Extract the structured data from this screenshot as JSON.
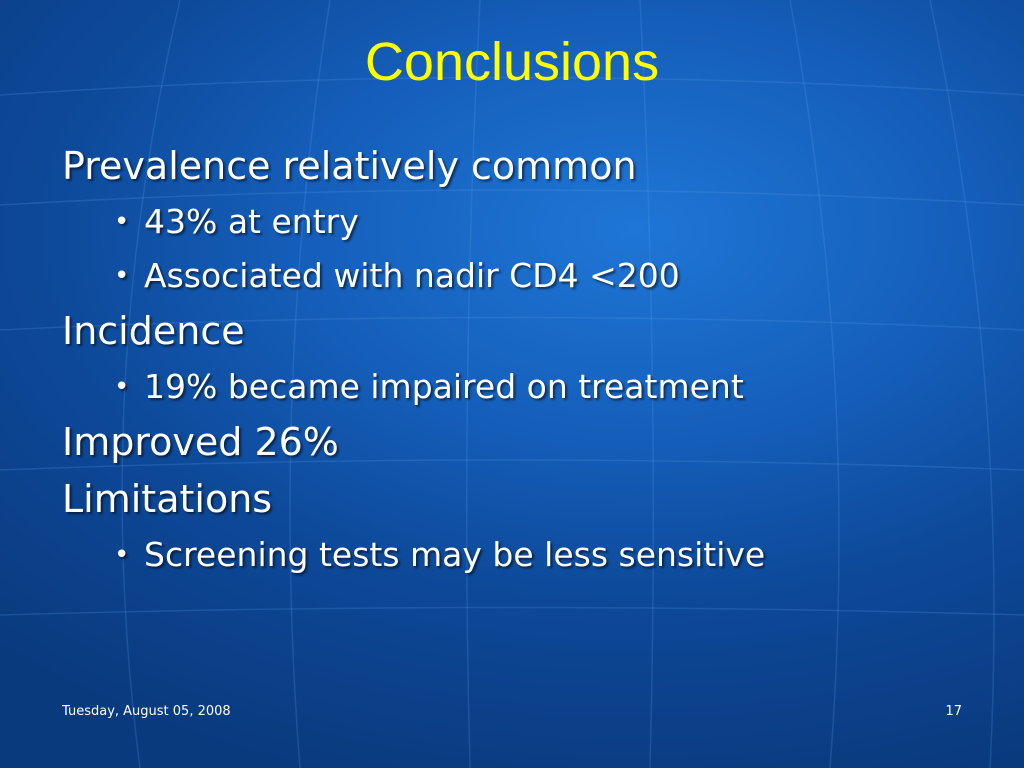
{
  "slide": {
    "title": "Conclusions",
    "items": [
      {
        "level": 1,
        "text": "Prevalence relatively common"
      },
      {
        "level": 2,
        "text": "43% at entry"
      },
      {
        "level": 2,
        "text": "Associated with nadir CD4 <200"
      },
      {
        "level": 1,
        "text": "Incidence"
      },
      {
        "level": 2,
        "text": "19% became impaired on treatment"
      },
      {
        "level": 1,
        "text": "Improved 26%"
      },
      {
        "level": 1,
        "text": "Limitations"
      },
      {
        "level": 2,
        "text": "Screening tests may be less sensitive"
      }
    ],
    "bullet_glyph": "•"
  },
  "footer": {
    "date": "Tuesday, August 05, 2008",
    "page_number": "17"
  },
  "colors": {
    "title": "#ffff00",
    "text": "#ffffff",
    "background": "#155fbb"
  }
}
